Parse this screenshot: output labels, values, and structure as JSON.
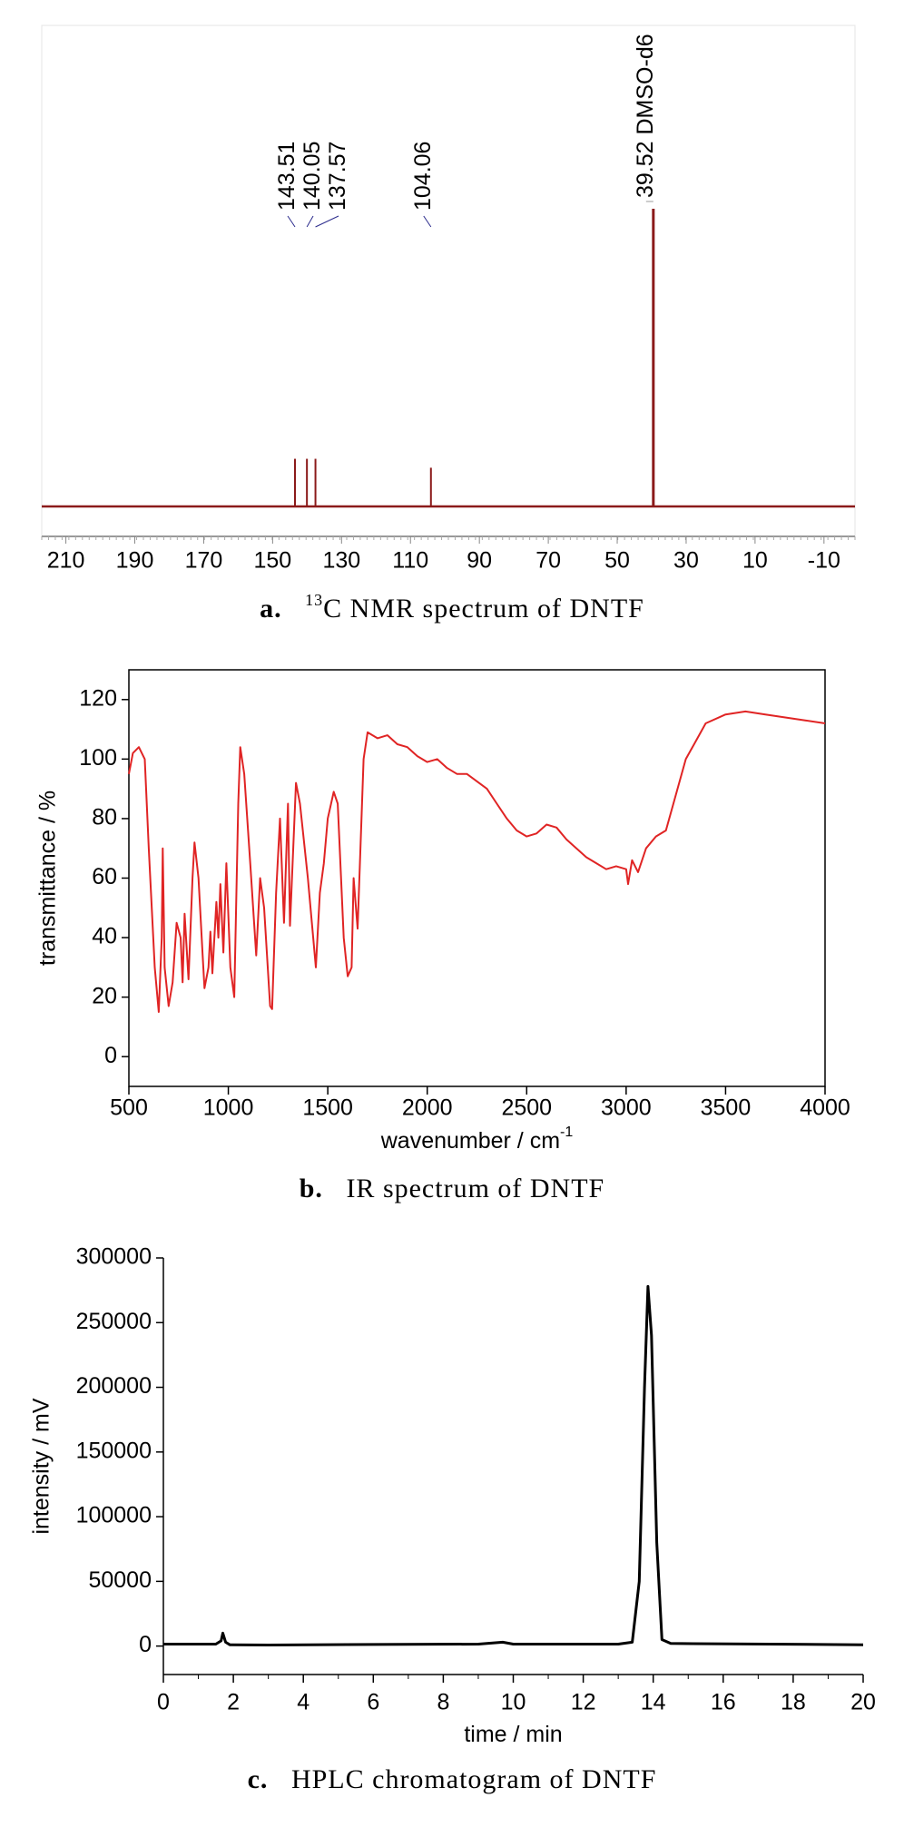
{
  "chart_data": [
    {
      "type": "stem",
      "caption_label": "a.",
      "caption_superscript": "13",
      "caption": "C NMR spectrum of DNTF",
      "x": [
        143.51,
        140.05,
        137.57,
        104.06,
        39.52
      ],
      "values": [
        16,
        16,
        16,
        13,
        100
      ],
      "solvent": "DMSO-d6",
      "color": "#8b1a1a",
      "label_color": "#2b2b8c",
      "solvent_label_color": "#9a9a9a",
      "xlim": [
        217,
        -19
      ],
      "ylim": [
        0,
        100
      ],
      "xticks": [
        210,
        190,
        170,
        150,
        130,
        110,
        90,
        70,
        50,
        30,
        10,
        -10
      ]
    },
    {
      "type": "line",
      "caption_label": "b.",
      "caption": "IR spectrum of DNTF",
      "xlabel": "wavenumber / cm",
      "xlabel_superscript": "-1",
      "ylabel": "transmittance / %",
      "color": "#e02424",
      "x": [
        500,
        520,
        550,
        580,
        600,
        630,
        650,
        665,
        670,
        680,
        700,
        720,
        740,
        760,
        770,
        780,
        800,
        820,
        830,
        850,
        870,
        880,
        900,
        910,
        920,
        940,
        950,
        960,
        975,
        990,
        1010,
        1030,
        1050,
        1060,
        1080,
        1110,
        1140,
        1160,
        1180,
        1210,
        1220,
        1240,
        1260,
        1280,
        1300,
        1310,
        1340,
        1360,
        1400,
        1440,
        1460,
        1480,
        1500,
        1530,
        1550,
        1580,
        1600,
        1620,
        1630,
        1650,
        1680,
        1700,
        1750,
        1800,
        1850,
        1900,
        1950,
        2000,
        2050,
        2100,
        2150,
        2200,
        2300,
        2350,
        2400,
        2450,
        2500,
        2550,
        2600,
        2650,
        2700,
        2750,
        2800,
        2850,
        2900,
        2950,
        3000,
        3010,
        3030,
        3060,
        3100,
        3150,
        3200,
        3300,
        3400,
        3500,
        3600,
        3700,
        3800,
        3900,
        4000
      ],
      "values": [
        95,
        102,
        104,
        100,
        70,
        30,
        15,
        40,
        70,
        30,
        17,
        25,
        45,
        40,
        25,
        48,
        26,
        60,
        72,
        60,
        35,
        23,
        30,
        42,
        28,
        52,
        40,
        58,
        35,
        65,
        30,
        20,
        85,
        104,
        95,
        65,
        34,
        60,
        50,
        17,
        16,
        55,
        80,
        45,
        85,
        44,
        92,
        85,
        60,
        30,
        55,
        65,
        80,
        89,
        85,
        40,
        27,
        30,
        60,
        43,
        100,
        109,
        107,
        108,
        105,
        104,
        101,
        99,
        100,
        97,
        95,
        95,
        90,
        85,
        80,
        76,
        74,
        75,
        78,
        77,
        73,
        70,
        67,
        65,
        63,
        64,
        63,
        58,
        66,
        62,
        70,
        74,
        76,
        100,
        112,
        115,
        116,
        115,
        114,
        113,
        112
      ],
      "xlim": [
        500,
        4000
      ],
      "ylim": [
        -10,
        130
      ],
      "xticks": [
        500,
        1000,
        1500,
        2000,
        2500,
        3000,
        3500,
        4000
      ],
      "yticks": [
        0,
        20,
        40,
        60,
        80,
        100,
        120
      ]
    },
    {
      "type": "line",
      "caption_label": "c.",
      "caption": "HPLC chromatogram of DNTF",
      "xlabel": "time / min",
      "ylabel": "intensity / mV",
      "color": "#000000",
      "x": [
        0,
        1.5,
        1.65,
        1.7,
        1.78,
        1.9,
        3,
        6,
        9,
        9.7,
        10,
        13,
        13.4,
        13.6,
        13.75,
        13.85,
        13.95,
        14.1,
        14.25,
        14.5,
        20
      ],
      "values": [
        1500,
        1500,
        4000,
        10000,
        3000,
        1000,
        800,
        1200,
        1500,
        3000,
        1500,
        1500,
        3000,
        50000,
        200000,
        278000,
        240000,
        80000,
        5000,
        2000,
        1000
      ],
      "xlim": [
        0,
        20
      ],
      "ylim": [
        -22000,
        300000
      ],
      "xticks": [
        0,
        2,
        4,
        6,
        8,
        10,
        12,
        14,
        16,
        18,
        20
      ],
      "yticks": [
        0,
        50000,
        100000,
        150000,
        200000,
        250000,
        300000
      ]
    }
  ]
}
